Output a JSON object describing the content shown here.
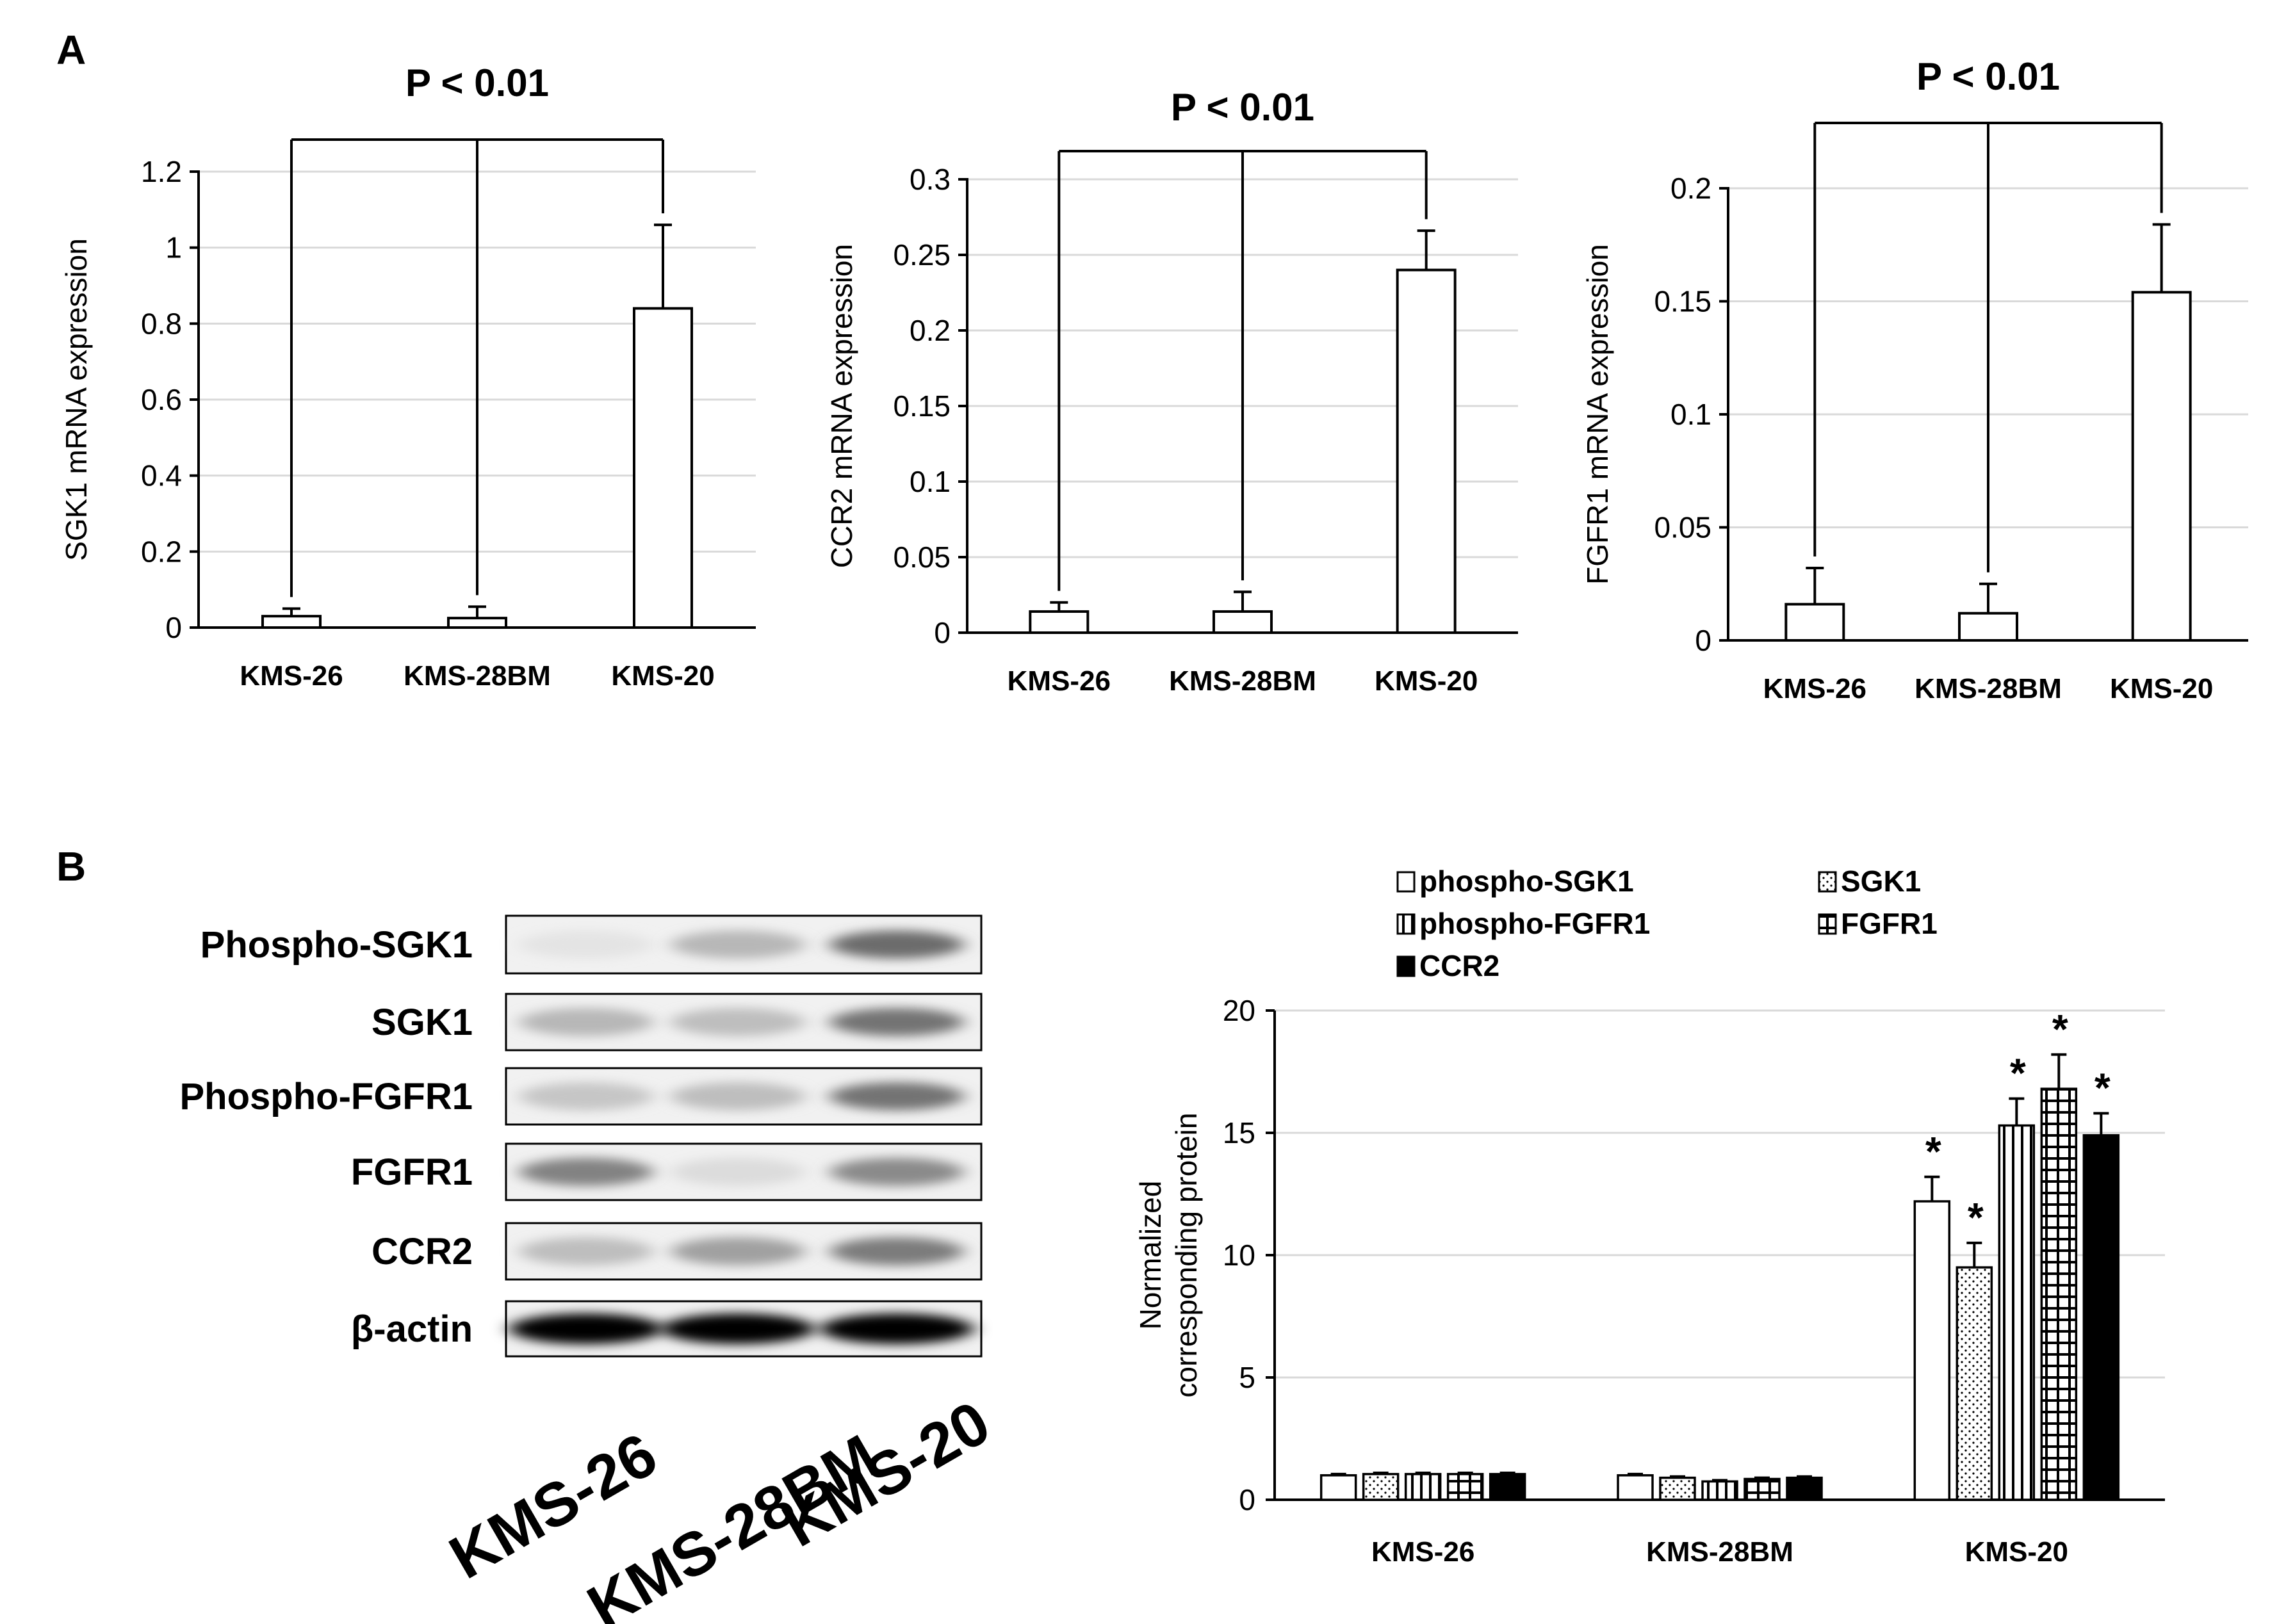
{
  "panels": {
    "a": "A",
    "b": "B"
  },
  "colors": {
    "bar_fill": "#ffffff",
    "bar_stroke": "#000000",
    "grid": "#d9d9d9",
    "axis": "#000000",
    "solid_fill": "#000000"
  },
  "blot": {
    "rows": [
      {
        "label": "Phospho-SGK1",
        "intensity": [
          0.05,
          0.35,
          0.85
        ]
      },
      {
        "label": "SGK1",
        "intensity": [
          0.35,
          0.3,
          0.8
        ]
      },
      {
        "label": "Phospho-FGFR1",
        "intensity": [
          0.25,
          0.3,
          0.8
        ]
      },
      {
        "label": "FGFR1",
        "intensity": [
          0.7,
          0.1,
          0.65
        ]
      },
      {
        "label": "CCR2",
        "intensity": [
          0.3,
          0.5,
          0.75
        ]
      },
      {
        "label": "β-actin",
        "intensity": [
          1.0,
          1.0,
          1.0
        ]
      }
    ],
    "lanes": [
      "KMS-26",
      "KMS-28BM",
      "KMS-20"
    ]
  },
  "chart_data": [
    {
      "type": "bar",
      "categories": [
        "KMS-26",
        "KMS-28BM",
        "KMS-20"
      ],
      "values": [
        0.03,
        0.025,
        0.84
      ],
      "errors": [
        0.02,
        0.03,
        0.22
      ],
      "ylabel": "SGK1 mRNA expression",
      "yticks": [
        0,
        0.2,
        0.4,
        0.6,
        0.8,
        1,
        1.2
      ],
      "ylim": [
        0,
        1.2
      ],
      "annotation": "P < 0.01",
      "grid": true
    },
    {
      "type": "bar",
      "categories": [
        "KMS-26",
        "KMS-28BM",
        "KMS-20"
      ],
      "values": [
        0.014,
        0.014,
        0.24
      ],
      "errors": [
        0.006,
        0.013,
        0.026
      ],
      "ylabel": "CCR2 mRNA expression",
      "yticks": [
        0,
        0.05,
        0.1,
        0.15,
        0.2,
        0.25,
        0.3
      ],
      "ylim": [
        0,
        0.3
      ],
      "annotation": "P < 0.01",
      "grid": true
    },
    {
      "type": "bar",
      "categories": [
        "KMS-26",
        "KMS-28BM",
        "KMS-20"
      ],
      "values": [
        0.016,
        0.012,
        0.154
      ],
      "errors": [
        0.016,
        0.013,
        0.03
      ],
      "ylabel": "FGFR1 mRNA expression",
      "yticks": [
        0,
        0.05,
        0.1,
        0.15,
        0.2
      ],
      "ylim": [
        0,
        0.2
      ],
      "annotation": "P < 0.01",
      "grid": true
    },
    {
      "type": "bar",
      "categories": [
        "KMS-26",
        "KMS-28BM",
        "KMS-20"
      ],
      "ylabel": "Normalized corresponding protein",
      "ylabel_lines": [
        "Normalized",
        "corresponding protein"
      ],
      "yticks": [
        0,
        5,
        10,
        15,
        20
      ],
      "ylim": [
        0,
        20
      ],
      "legend_position": "top",
      "grid": true,
      "series": [
        {
          "name": "phospho-SGK1",
          "pattern": "empty",
          "values": [
            1.0,
            1.0,
            12.2
          ],
          "errors": [
            0.05,
            0.05,
            1.0
          ],
          "significant": [
            false,
            false,
            true
          ]
        },
        {
          "name": "SGK1",
          "pattern": "dots",
          "values": [
            1.05,
            0.9,
            9.5
          ],
          "errors": [
            0.05,
            0.05,
            1.0
          ],
          "significant": [
            false,
            false,
            true
          ]
        },
        {
          "name": "phospho-FGFR1",
          "pattern": "vlines",
          "values": [
            1.05,
            0.75,
            15.3
          ],
          "errors": [
            0.05,
            0.05,
            1.1
          ],
          "significant": [
            false,
            false,
            true
          ]
        },
        {
          "name": "FGFR1",
          "pattern": "grid",
          "values": [
            1.05,
            0.85,
            16.8
          ],
          "errors": [
            0.05,
            0.05,
            1.4
          ],
          "significant": [
            false,
            false,
            true
          ]
        },
        {
          "name": "CCR2",
          "pattern": "solid",
          "values": [
            1.05,
            0.9,
            14.9
          ],
          "errors": [
            0.05,
            0.05,
            0.9
          ],
          "significant": [
            false,
            false,
            true
          ]
        }
      ],
      "significance_marker": "*"
    }
  ]
}
